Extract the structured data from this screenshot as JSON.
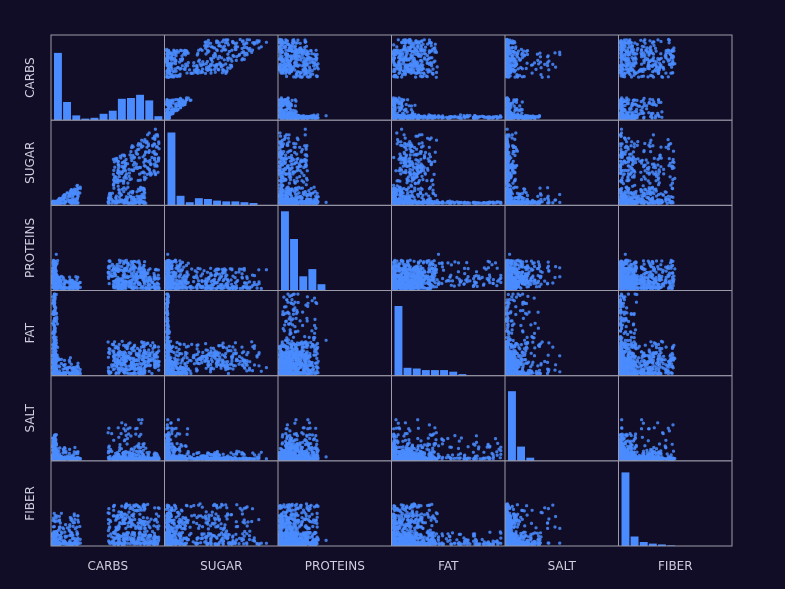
{
  "chart_data": {
    "type": "scatter",
    "subtype": "scatter-matrix",
    "title": "",
    "variables": [
      "CARBS",
      "SUGAR",
      "PROTEINS",
      "FAT",
      "SALT",
      "FIBER"
    ],
    "diagonal": "histogram",
    "marker_color": "#4a8cff",
    "background_color": "#110d26",
    "grid_line_color": "#9a9aa8",
    "label_color": "#cfcfdf",
    "grid": false,
    "legend": "none",
    "histograms": {
      "CARBS": [
        0.85,
        0.23,
        0.06,
        0.02,
        0.03,
        0.08,
        0.12,
        0.27,
        0.28,
        0.32,
        0.25,
        0.05
      ],
      "SUGAR": [
        0.92,
        0.12,
        0.04,
        0.09,
        0.08,
        0.06,
        0.05,
        0.05,
        0.04,
        0.03
      ],
      "PROTEINS": [
        1.0,
        0.65,
        0.18,
        0.27,
        0.08
      ],
      "FAT": [
        0.88,
        0.1,
        0.09,
        0.07,
        0.07,
        0.07,
        0.05,
        0.02
      ],
      "SALT": [
        0.88,
        0.18,
        0.04
      ],
      "FIBER": [
        0.93,
        0.12,
        0.05,
        0.03,
        0.02,
        0.01
      ]
    }
  }
}
